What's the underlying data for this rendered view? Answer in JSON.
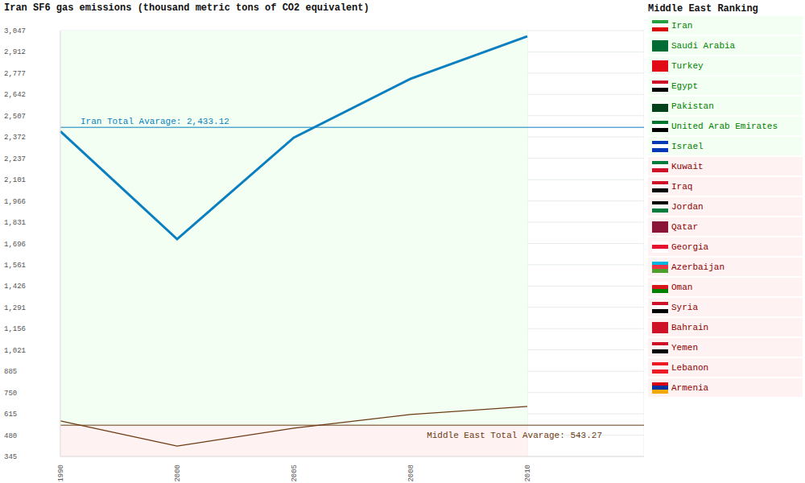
{
  "chart_data": {
    "type": "line",
    "title": "Iran SF6 gas emissions (thousand metric tons of CO2 equivalent)",
    "categories": [
      "1990",
      "2000",
      "2005",
      "2008",
      "2010"
    ],
    "series": [
      {
        "color": "#0a7fc0",
        "values": [
          2408,
          1724,
          2368,
          2741,
          3011
        ]
      },
      {
        "color": "#6b3a12",
        "values": [
          570,
          411,
          524,
          611,
          662
        ]
      }
    ],
    "ylim": [
      345,
      3047
    ],
    "yticks": [
      345,
      480,
      615,
      750,
      885,
      {
        "value": 1021,
        "label": "1,021"
      },
      {
        "value": 1156,
        "label": "1,156"
      },
      {
        "value": 1291,
        "label": "1,291"
      },
      {
        "value": 1426,
        "label": "1,426"
      },
      {
        "value": 1561,
        "label": "1,561"
      },
      {
        "value": 1696,
        "label": "1,696"
      },
      {
        "value": 1831,
        "label": "1,831"
      },
      {
        "value": 1966,
        "label": "1,966"
      },
      {
        "value": 2101,
        "label": "2,101"
      },
      {
        "value": 2237,
        "label": "2,237"
      },
      {
        "value": 2372,
        "label": "2,372"
      },
      {
        "value": 2507,
        "label": "2,507"
      },
      {
        "value": 2642,
        "label": "2,642"
      },
      {
        "value": 2777,
        "label": "2,777"
      },
      {
        "value": 2912,
        "label": "2,912"
      },
      {
        "value": 3047,
        "label": "3,047"
      }
    ],
    "grid": true,
    "annotations": [
      {
        "label": "Iran Total Avarage: 2,433.12",
        "value": 2433.12,
        "color": "#0a7fc0"
      },
      {
        "label": "Middle East Total Avarage: 543.27",
        "value": 543.27,
        "color": "#6b3a12"
      }
    ]
  },
  "ranking": {
    "title": "Middle East Ranking",
    "items": [
      {
        "name": "Iran",
        "color": "#008000"
      },
      {
        "name": "Saudi Arabia",
        "color": "#008000"
      },
      {
        "name": "Turkey",
        "color": "#008000"
      },
      {
        "name": "Egypt",
        "color": "#008000"
      },
      {
        "name": "Pakistan",
        "color": "#008000"
      },
      {
        "name": "United Arab Emirates",
        "color": "#008000"
      },
      {
        "name": "Israel",
        "color": "#008000"
      },
      {
        "name": "Kuwait",
        "color": "#8b0000"
      },
      {
        "name": "Iraq",
        "color": "#8b0000"
      },
      {
        "name": "Jordan",
        "color": "#8b0000"
      },
      {
        "name": "Qatar",
        "color": "#8b0000"
      },
      {
        "name": "Georgia",
        "color": "#8b0000"
      },
      {
        "name": "Azerbaijan",
        "color": "#8b0000"
      },
      {
        "name": "Oman",
        "color": "#8b0000"
      },
      {
        "name": "Syria",
        "color": "#8b0000"
      },
      {
        "name": "Bahrain",
        "color": "#8b0000"
      },
      {
        "name": "Yemen",
        "color": "#8b0000"
      },
      {
        "name": "Lebanon",
        "color": "#8b0000"
      },
      {
        "name": "Armenia",
        "color": "#8b0000"
      }
    ]
  }
}
